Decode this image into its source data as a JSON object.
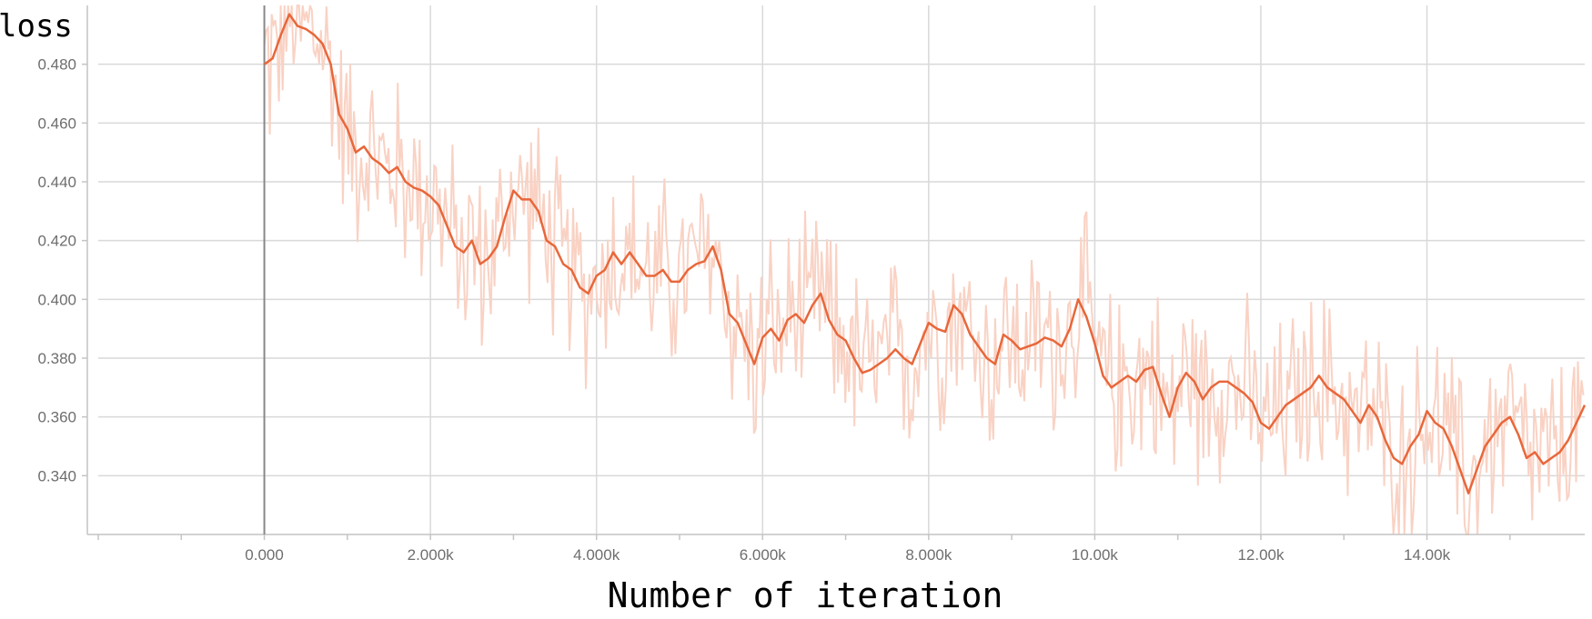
{
  "chart_data": {
    "type": "line",
    "title": "",
    "ylabel": "loss",
    "xlabel": "Number of iteration",
    "xlim": [
      -2000,
      15900
    ],
    "ylim": [
      0.32,
      0.5
    ],
    "grid": true,
    "x_ticks": [
      0,
      2000,
      4000,
      6000,
      8000,
      10000,
      12000,
      14000
    ],
    "x_tick_labels": [
      "0.000",
      "2.000k",
      "4.000k",
      "6.000k",
      "8.000k",
      "10.00k",
      "12.00k",
      "14.00k"
    ],
    "y_ticks": [
      0.34,
      0.36,
      0.38,
      0.4,
      0.42,
      0.44,
      0.46,
      0.48
    ],
    "y_tick_labels": [
      "0.340",
      "0.360",
      "0.380",
      "0.400",
      "0.420",
      "0.440",
      "0.460",
      "0.480"
    ],
    "colors": {
      "smoothed": "#e8673a",
      "raw": "#f9d2c4",
      "grid": "#d9d9d9",
      "axis": "#c4c4c4",
      "zero_line": "#888888"
    },
    "series": [
      {
        "role": "smoothed",
        "x": [
          0,
          100,
          200,
          300,
          400,
          500,
          600,
          700,
          800,
          900,
          1000,
          1100,
          1200,
          1300,
          1400,
          1500,
          1600,
          1700,
          1800,
          1900,
          2000,
          2100,
          2200,
          2300,
          2400,
          2500,
          2600,
          2700,
          2800,
          2900,
          3000,
          3100,
          3200,
          3300,
          3400,
          3500,
          3600,
          3700,
          3800,
          3900,
          4000,
          4100,
          4200,
          4300,
          4400,
          4500,
          4600,
          4700,
          4800,
          4900,
          5000,
          5100,
          5200,
          5300,
          5400,
          5500,
          5600,
          5700,
          5800,
          5900,
          6000,
          6100,
          6200,
          6300,
          6400,
          6500,
          6600,
          6700,
          6800,
          6900,
          7000,
          7100,
          7200,
          7300,
          7400,
          7500,
          7600,
          7700,
          7800,
          7900,
          8000,
          8100,
          8200,
          8300,
          8400,
          8500,
          8600,
          8700,
          8800,
          8900,
          9000,
          9100,
          9200,
          9300,
          9400,
          9500,
          9600,
          9700,
          9800,
          9900,
          10000,
          10100,
          10200,
          10300,
          10400,
          10500,
          10600,
          10700,
          10800,
          10900,
          11000,
          11100,
          11200,
          11300,
          11400,
          11500,
          11600,
          11700,
          11800,
          11900,
          12000,
          12100,
          12200,
          12300,
          12400,
          12500,
          12600,
          12700,
          12800,
          12900,
          13000,
          13100,
          13200,
          13300,
          13400,
          13500,
          13600,
          13700,
          13800,
          13900,
          14000,
          14100,
          14200,
          14300,
          14400,
          14500,
          14600,
          14700,
          14800,
          14900,
          15000,
          15100,
          15200,
          15300,
          15400,
          15500,
          15600,
          15700,
          15800,
          15900
        ],
        "values": [
          0.48,
          0.482,
          0.49,
          0.497,
          0.493,
          0.492,
          0.49,
          0.487,
          0.48,
          0.463,
          0.458,
          0.45,
          0.452,
          0.448,
          0.446,
          0.443,
          0.445,
          0.44,
          0.438,
          0.437,
          0.435,
          0.432,
          0.425,
          0.418,
          0.416,
          0.42,
          0.412,
          0.414,
          0.418,
          0.428,
          0.437,
          0.434,
          0.434,
          0.43,
          0.42,
          0.418,
          0.412,
          0.41,
          0.404,
          0.402,
          0.408,
          0.41,
          0.416,
          0.412,
          0.416,
          0.412,
          0.408,
          0.408,
          0.41,
          0.406,
          0.406,
          0.41,
          0.412,
          0.413,
          0.418,
          0.41,
          0.395,
          0.392,
          0.385,
          0.378,
          0.387,
          0.39,
          0.386,
          0.393,
          0.395,
          0.392,
          0.398,
          0.402,
          0.393,
          0.388,
          0.386,
          0.38,
          0.375,
          0.376,
          0.378,
          0.38,
          0.383,
          0.38,
          0.378,
          0.385,
          0.392,
          0.39,
          0.389,
          0.398,
          0.395,
          0.388,
          0.384,
          0.38,
          0.378,
          0.388,
          0.386,
          0.383,
          0.384,
          0.385,
          0.387,
          0.386,
          0.384,
          0.39,
          0.4,
          0.394,
          0.385,
          0.374,
          0.37,
          0.372,
          0.374,
          0.372,
          0.376,
          0.377,
          0.368,
          0.36,
          0.37,
          0.375,
          0.372,
          0.366,
          0.37,
          0.372,
          0.372,
          0.37,
          0.368,
          0.365,
          0.358,
          0.356,
          0.36,
          0.364,
          0.366,
          0.368,
          0.37,
          0.374,
          0.37,
          0.368,
          0.366,
          0.362,
          0.358,
          0.364,
          0.36,
          0.352,
          0.346,
          0.344,
          0.35,
          0.354,
          0.362,
          0.358,
          0.356,
          0.35,
          0.342,
          0.334,
          0.342,
          0.35,
          0.354,
          0.358,
          0.36,
          0.354,
          0.346,
          0.348,
          0.344,
          0.346,
          0.348,
          0.352,
          0.358,
          0.364
        ]
      }
    ]
  }
}
